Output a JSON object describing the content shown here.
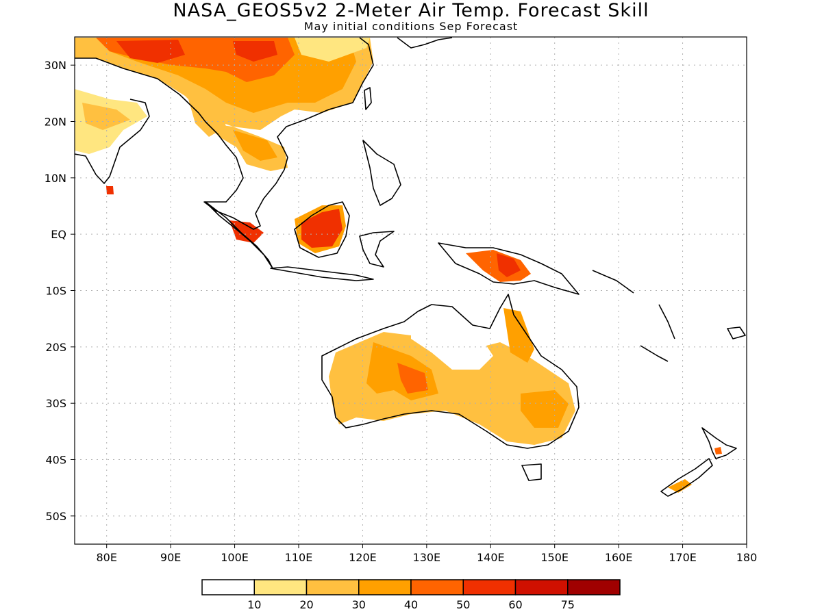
{
  "header": {
    "title": "NASA_GEOS5v2 2-Meter Air Temp. Forecast Skill",
    "subtitle": "May initial conditions  Sep Forecast"
  },
  "map": {
    "lon_range": [
      75,
      180
    ],
    "lat_range": [
      -55,
      35
    ],
    "lat_ticks": [
      {
        "value": 30,
        "label": "30N"
      },
      {
        "value": 20,
        "label": "20N"
      },
      {
        "value": 10,
        "label": "10N"
      },
      {
        "value": 0,
        "label": "EQ"
      },
      {
        "value": -10,
        "label": "10S"
      },
      {
        "value": -20,
        "label": "20S"
      },
      {
        "value": -30,
        "label": "30S"
      },
      {
        "value": -40,
        "label": "40S"
      },
      {
        "value": -50,
        "label": "50S"
      }
    ],
    "lon_ticks": [
      {
        "value": 80,
        "label": "80E"
      },
      {
        "value": 90,
        "label": "90E"
      },
      {
        "value": 100,
        "label": "100E"
      },
      {
        "value": 110,
        "label": "110E"
      },
      {
        "value": 120,
        "label": "120E"
      },
      {
        "value": 130,
        "label": "130E"
      },
      {
        "value": 140,
        "label": "140E"
      },
      {
        "value": 150,
        "label": "150E"
      },
      {
        "value": 160,
        "label": "160E"
      },
      {
        "value": 170,
        "label": "170E"
      },
      {
        "value": 180,
        "label": "180"
      }
    ],
    "grid": true
  },
  "legend": {
    "colors": [
      "#ffffff",
      "#ffe680",
      "#ffc040",
      "#ffa000",
      "#ff6400",
      "#f03000",
      "#d01000",
      "#a00000"
    ],
    "labels": [
      "10",
      "20",
      "30",
      "40",
      "50",
      "60",
      "75"
    ]
  }
}
